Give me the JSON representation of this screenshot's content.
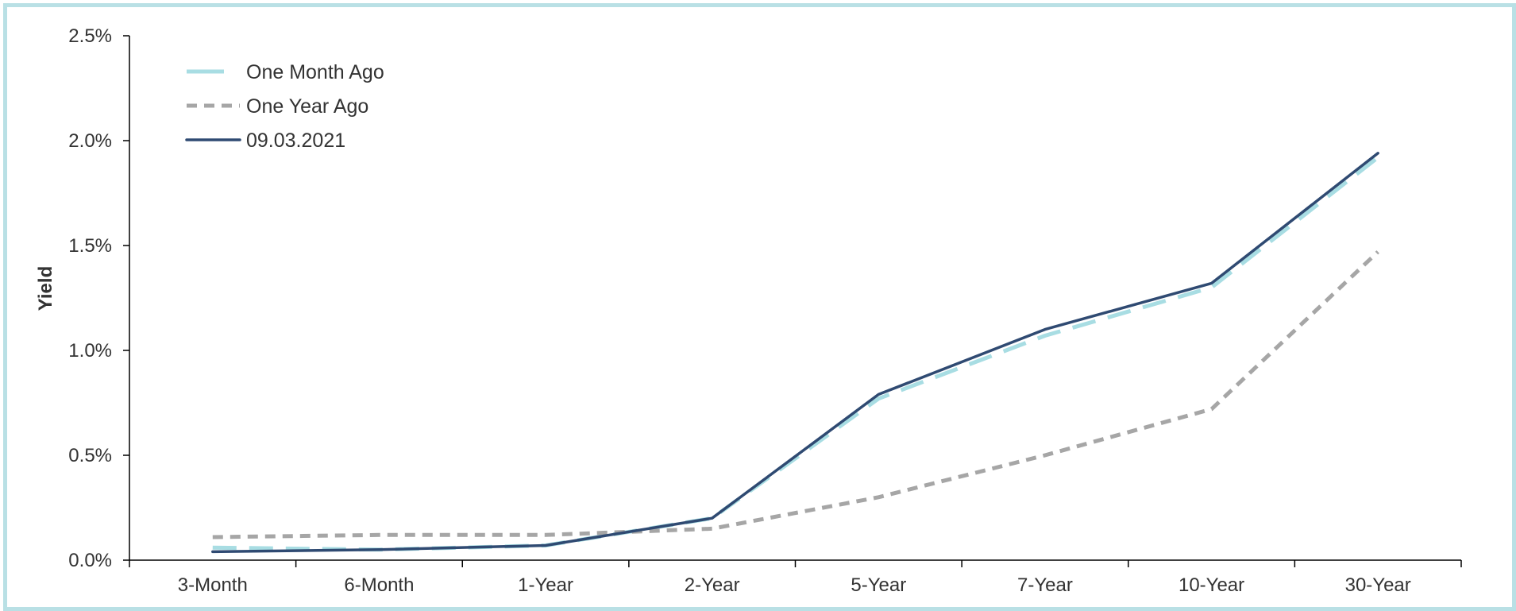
{
  "chart_data": {
    "type": "line",
    "title": "",
    "xlabel": "",
    "ylabel": "Yield",
    "categories": [
      "3-Month",
      "6-Month",
      "1-Year",
      "2-Year",
      "5-Year",
      "7-Year",
      "10-Year",
      "30-Year"
    ],
    "ylim": [
      0,
      0.025
    ],
    "yticks": [
      "0.0%",
      "0.5%",
      "1.0%",
      "1.5%",
      "2.0%",
      "2.5%"
    ],
    "grid": false,
    "legend_position": "top-left",
    "series": [
      {
        "name": "One Month Ago",
        "color": "#a8dde3",
        "style": "long-dash",
        "values": [
          0.0006,
          0.0005,
          0.0007,
          0.002,
          0.0077,
          0.0107,
          0.013,
          0.0192
        ]
      },
      {
        "name": "One Year Ago",
        "color": "#a6a6a6",
        "style": "short-dash",
        "values": [
          0.0011,
          0.0012,
          0.0012,
          0.0015,
          0.003,
          0.005,
          0.0072,
          0.0147
        ]
      },
      {
        "name": "09.03.2021",
        "color": "#2f4a72",
        "style": "solid",
        "values": [
          0.0004,
          0.0005,
          0.0007,
          0.002,
          0.0079,
          0.011,
          0.0132,
          0.0194
        ]
      }
    ]
  }
}
